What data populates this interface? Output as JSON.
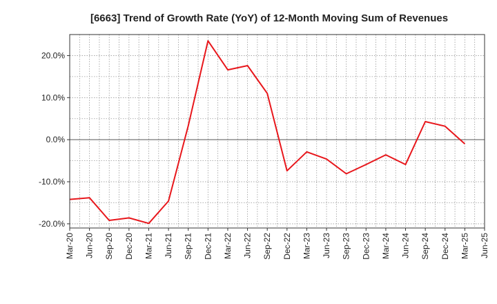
{
  "chart_data": {
    "type": "line",
    "title": "[6663]  Trend of Growth Rate (YoY) of 12-Month Moving Sum of Revenues",
    "xlabel": "",
    "ylabel": "",
    "x": [
      "Mar-20",
      "Jun-20",
      "Sep-20",
      "Dec-20",
      "Mar-21",
      "Jun-21",
      "Sep-21",
      "Dec-21",
      "Mar-22",
      "Jun-22",
      "Sep-22",
      "Dec-22",
      "Mar-23",
      "Jun-23",
      "Sep-23",
      "Dec-23",
      "Mar-24",
      "Jun-24",
      "Sep-24",
      "Dec-24",
      "Mar-25"
    ],
    "x_ticks": [
      "Mar-20",
      "Jun-20",
      "Sep-20",
      "Dec-20",
      "Mar-21",
      "Jun-21",
      "Sep-21",
      "Dec-21",
      "Mar-22",
      "Jun-22",
      "Sep-22",
      "Dec-22",
      "Mar-23",
      "Jun-23",
      "Sep-23",
      "Dec-23",
      "Mar-24",
      "Jun-24",
      "Sep-24",
      "Dec-24",
      "Mar-25",
      "Jun-25"
    ],
    "series": [
      {
        "values": [
          -14.2,
          -13.8,
          -19.2,
          -18.6,
          -19.9,
          -14.6,
          3.3,
          23.5,
          16.6,
          17.6,
          11.0,
          -7.4,
          -2.9,
          -4.6,
          -8.1,
          -5.9,
          -3.6,
          -5.9,
          4.3,
          3.2,
          -1.0
        ]
      }
    ],
    "ylim": [
      -21,
      25
    ],
    "y_ticks": [
      20,
      10,
      0,
      -10,
      -20
    ],
    "y_tick_labels": [
      "20.0%",
      "10.0%",
      "0.0%",
      "-10.0%",
      "-20.0%"
    ],
    "grid": true,
    "line_color": "#e8161b",
    "zero_line": true
  }
}
